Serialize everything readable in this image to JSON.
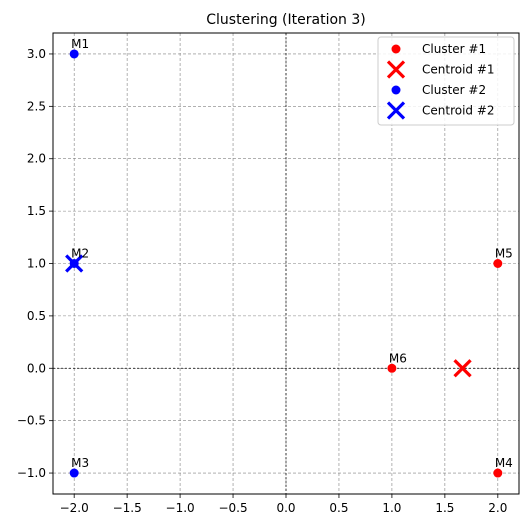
{
  "chart_data": {
    "type": "scatter",
    "title": "Clustering (Iteration 3)",
    "xlabel": "",
    "ylabel": "",
    "xlim": [
      -2.2,
      2.2
    ],
    "ylim": [
      -1.2,
      3.2
    ],
    "xticks": [
      -2.0,
      -1.5,
      -1.0,
      -0.5,
      0.0,
      0.5,
      1.0,
      1.5,
      2.0
    ],
    "yticks": [
      -1.0,
      -0.5,
      0.0,
      0.5,
      1.0,
      1.5,
      2.0,
      2.5,
      3.0
    ],
    "xtick_labels": [
      "−2.0",
      "−1.5",
      "−1.0",
      "−0.5",
      "0.0",
      "0.5",
      "1.0",
      "1.5",
      "2.0"
    ],
    "ytick_labels": [
      "−1.0",
      "−0.5",
      "0.0",
      "0.5",
      "1.0",
      "1.5",
      "2.0",
      "2.5",
      "3.0"
    ],
    "grid": true,
    "reference_lines": {
      "x": 0,
      "y": 0
    },
    "legend_position": "top-right",
    "series": [
      {
        "name": "Cluster #1",
        "kind": "points",
        "color": "#ff0000",
        "points": [
          {
            "label": "M4",
            "x": 2.0,
            "y": -1.0
          },
          {
            "label": "M5",
            "x": 2.0,
            "y": 1.0
          },
          {
            "label": "M6",
            "x": 1.0,
            "y": 0.0
          }
        ]
      },
      {
        "name": "Centroid #1",
        "kind": "centroid",
        "color": "#ff0000",
        "points": [
          {
            "x": 1.667,
            "y": 0.0
          }
        ]
      },
      {
        "name": "Cluster #2",
        "kind": "points",
        "color": "#0000ff",
        "points": [
          {
            "label": "M1",
            "x": -2.0,
            "y": 3.0
          },
          {
            "label": "M2",
            "x": -2.0,
            "y": 1.0
          },
          {
            "label": "M3",
            "x": -2.0,
            "y": -1.0
          }
        ]
      },
      {
        "name": "Centroid #2",
        "kind": "centroid",
        "color": "#0000ff",
        "points": [
          {
            "x": -2.0,
            "y": 1.0
          }
        ]
      }
    ]
  }
}
